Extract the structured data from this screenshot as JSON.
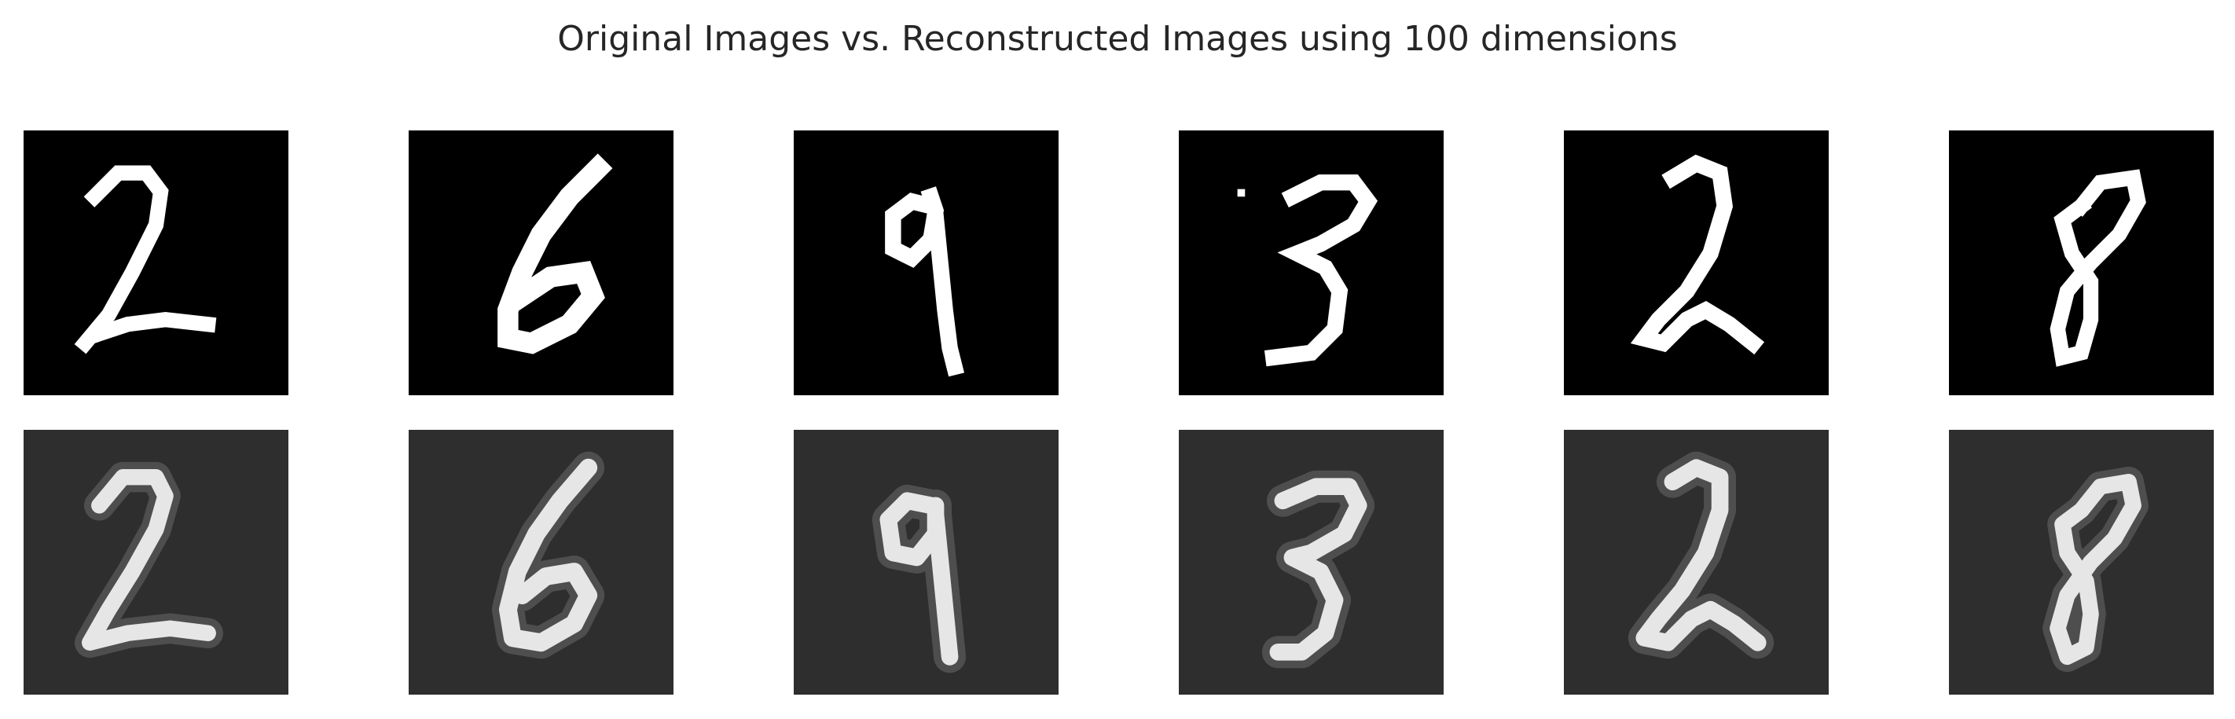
{
  "figure": {
    "title": "Original Images vs. Reconstructed Images using 100 dimensions"
  },
  "rows": [
    {
      "kind": "original",
      "panels": [
        {
          "digit": "2"
        },
        {
          "digit": "6"
        },
        {
          "digit": "9"
        },
        {
          "digit": "3"
        },
        {
          "digit": "2"
        },
        {
          "digit": "8"
        }
      ]
    },
    {
      "kind": "reconstructed",
      "panels": [
        {
          "digit": "2"
        },
        {
          "digit": "6"
        },
        {
          "digit": "9"
        },
        {
          "digit": "3"
        },
        {
          "digit": "2"
        },
        {
          "digit": "8"
        }
      ]
    }
  ],
  "colors": {
    "original_background": "#000000",
    "reconstructed_background": "#2e2e2e",
    "stroke": "#ffffff"
  }
}
